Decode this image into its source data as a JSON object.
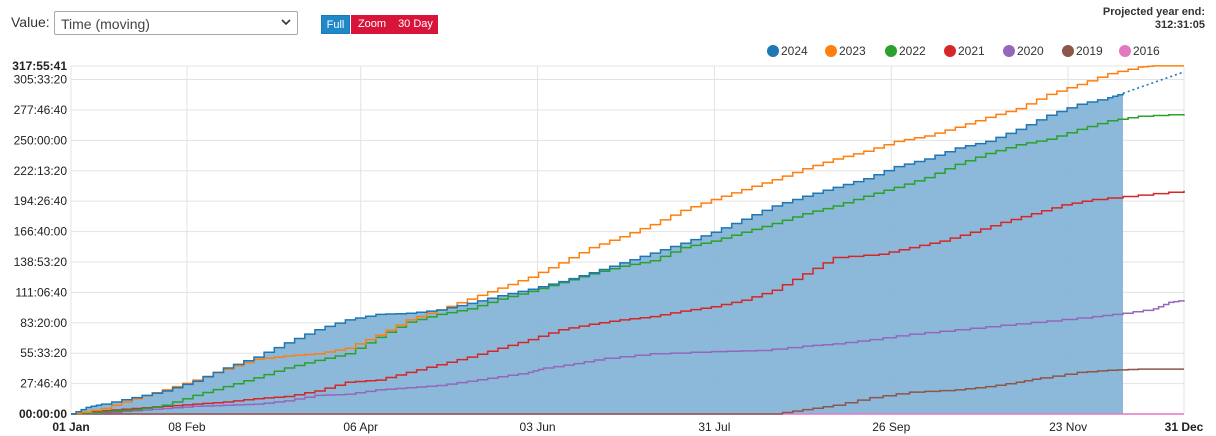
{
  "controls": {
    "value_label": "Value:",
    "value_select": "Time (moving)",
    "buttons": {
      "full": "Full",
      "zoom": "Zoom",
      "day30": "30 Day"
    },
    "projected_label": "Projected year end:",
    "projected_value": "312:31:05"
  },
  "legend": [
    {
      "label": "2024",
      "color": "#1f77b4"
    },
    {
      "label": "2023",
      "color": "#ff7f0e"
    },
    {
      "label": "2022",
      "color": "#2ca02c"
    },
    {
      "label": "2021",
      "color": "#d62728"
    },
    {
      "label": "2020",
      "color": "#9467bd"
    },
    {
      "label": "2019",
      "color": "#8c564b"
    },
    {
      "label": "2016",
      "color": "#e377c2"
    }
  ],
  "chart_data": {
    "type": "area",
    "xlabel": "",
    "ylabel": "",
    "x_ticks": [
      "01 Jan",
      "08 Feb",
      "06 Apr",
      "03 Jun",
      "31 Jul",
      "26 Sep",
      "23 Nov",
      "31 Dec"
    ],
    "x_tick_days": [
      0,
      38,
      95,
      153,
      211,
      269,
      327,
      365
    ],
    "y_ticks": [
      "00:00:00",
      "27:46:40",
      "55:33:20",
      "83:20:00",
      "111:06:40",
      "138:53:20",
      "166:40:00",
      "194:26:40",
      "222:13:20",
      "250:00:00",
      "277:46:40",
      "305:33:20"
    ],
    "y_tick_hours": [
      0,
      27.778,
      55.556,
      83.333,
      111.111,
      138.889,
      166.667,
      194.444,
      222.222,
      250,
      277.778,
      305.556
    ],
    "y_max_label": "317:55:41",
    "ylim_hours": [
      0,
      317.928
    ],
    "xlim_days": [
      0,
      365
    ],
    "grid": true,
    "series": [
      {
        "name": "2016",
        "color": "#e377c2",
        "fill": false,
        "points": [
          [
            0,
            0
          ],
          [
            365,
            0
          ]
        ]
      },
      {
        "name": "2019",
        "color": "#8c564b",
        "fill": false,
        "points": [
          [
            0,
            0
          ],
          [
            230,
            0
          ],
          [
            240,
            4
          ],
          [
            250,
            8
          ],
          [
            262,
            15
          ],
          [
            275,
            20
          ],
          [
            290,
            22
          ],
          [
            300,
            25
          ],
          [
            310,
            29
          ],
          [
            318,
            33
          ],
          [
            330,
            38
          ],
          [
            340,
            40
          ],
          [
            350,
            41
          ],
          [
            365,
            41
          ]
        ]
      },
      {
        "name": "2020",
        "color": "#9467bd",
        "fill": false,
        "points": [
          [
            0,
            0
          ],
          [
            10,
            1
          ],
          [
            20,
            3
          ],
          [
            30,
            5
          ],
          [
            40,
            7
          ],
          [
            50,
            8
          ],
          [
            60,
            9
          ],
          [
            70,
            12
          ],
          [
            80,
            17
          ],
          [
            90,
            18
          ],
          [
            100,
            22
          ],
          [
            110,
            24
          ],
          [
            120,
            26
          ],
          [
            130,
            30
          ],
          [
            140,
            34
          ],
          [
            150,
            38
          ],
          [
            155,
            42
          ],
          [
            165,
            46
          ],
          [
            175,
            51
          ],
          [
            190,
            55
          ],
          [
            210,
            57
          ],
          [
            225,
            58
          ],
          [
            240,
            62
          ],
          [
            250,
            64
          ],
          [
            262,
            68
          ],
          [
            275,
            73
          ],
          [
            290,
            77
          ],
          [
            305,
            81
          ],
          [
            320,
            85
          ],
          [
            335,
            89
          ],
          [
            345,
            92
          ],
          [
            355,
            96
          ],
          [
            360,
            102
          ],
          [
            365,
            104
          ]
        ]
      },
      {
        "name": "2021",
        "color": "#d62728",
        "fill": false,
        "points": [
          [
            0,
            0
          ],
          [
            10,
            3
          ],
          [
            20,
            5
          ],
          [
            30,
            7
          ],
          [
            40,
            9
          ],
          [
            50,
            11
          ],
          [
            60,
            14
          ],
          [
            70,
            16
          ],
          [
            80,
            21
          ],
          [
            90,
            29
          ],
          [
            100,
            31
          ],
          [
            110,
            38
          ],
          [
            120,
            45
          ],
          [
            130,
            52
          ],
          [
            140,
            60
          ],
          [
            150,
            68
          ],
          [
            160,
            77
          ],
          [
            170,
            82
          ],
          [
            180,
            86
          ],
          [
            190,
            89
          ],
          [
            200,
            94
          ],
          [
            210,
            98
          ],
          [
            220,
            104
          ],
          [
            230,
            113
          ],
          [
            240,
            128
          ],
          [
            250,
            143
          ],
          [
            265,
            146
          ],
          [
            275,
            152
          ],
          [
            285,
            158
          ],
          [
            295,
            166
          ],
          [
            305,
            175
          ],
          [
            315,
            183
          ],
          [
            325,
            191
          ],
          [
            335,
            196
          ],
          [
            350,
            200
          ],
          [
            365,
            204
          ]
        ]
      },
      {
        "name": "2022",
        "color": "#2ca02c",
        "fill": false,
        "points": [
          [
            0,
            0
          ],
          [
            10,
            2
          ],
          [
            20,
            4
          ],
          [
            30,
            8
          ],
          [
            40,
            17
          ],
          [
            50,
            25
          ],
          [
            60,
            33
          ],
          [
            70,
            42
          ],
          [
            80,
            49
          ],
          [
            90,
            55
          ],
          [
            100,
            70
          ],
          [
            110,
            84
          ],
          [
            120,
            91
          ],
          [
            130,
            96
          ],
          [
            140,
            105
          ],
          [
            150,
            112
          ],
          [
            160,
            120
          ],
          [
            170,
            128
          ],
          [
            180,
            135
          ],
          [
            190,
            140
          ],
          [
            200,
            152
          ],
          [
            210,
            158
          ],
          [
            220,
            166
          ],
          [
            230,
            174
          ],
          [
            240,
            183
          ],
          [
            250,
            190
          ],
          [
            260,
            199
          ],
          [
            270,
            207
          ],
          [
            280,
            216
          ],
          [
            290,
            228
          ],
          [
            300,
            238
          ],
          [
            310,
            246
          ],
          [
            320,
            251
          ],
          [
            330,
            260
          ],
          [
            340,
            268
          ],
          [
            350,
            272
          ],
          [
            365,
            274
          ]
        ]
      },
      {
        "name": "2023",
        "color": "#ff7f0e",
        "fill": false,
        "points": [
          [
            0,
            0
          ],
          [
            10,
            5
          ],
          [
            20,
            14
          ],
          [
            30,
            22
          ],
          [
            40,
            31
          ],
          [
            50,
            41
          ],
          [
            60,
            50
          ],
          [
            70,
            53
          ],
          [
            80,
            55
          ],
          [
            90,
            60
          ],
          [
            100,
            72
          ],
          [
            110,
            86
          ],
          [
            120,
            95
          ],
          [
            130,
            105
          ],
          [
            140,
            115
          ],
          [
            150,
            125
          ],
          [
            160,
            138
          ],
          [
            170,
            152
          ],
          [
            180,
            162
          ],
          [
            190,
            173
          ],
          [
            200,
            186
          ],
          [
            210,
            196
          ],
          [
            220,
            205
          ],
          [
            230,
            214
          ],
          [
            240,
            224
          ],
          [
            250,
            233
          ],
          [
            260,
            240
          ],
          [
            270,
            249
          ],
          [
            280,
            254
          ],
          [
            290,
            262
          ],
          [
            300,
            271
          ],
          [
            310,
            279
          ],
          [
            320,
            292
          ],
          [
            330,
            301
          ],
          [
            340,
            311
          ],
          [
            350,
            317
          ],
          [
            355,
            318
          ],
          [
            365,
            318
          ]
        ]
      },
      {
        "name": "2024",
        "color": "#1f77b4",
        "fill": true,
        "points": [
          [
            0,
            0
          ],
          [
            5,
            6
          ],
          [
            10,
            9
          ],
          [
            20,
            15
          ],
          [
            30,
            21
          ],
          [
            40,
            30
          ],
          [
            50,
            42
          ],
          [
            60,
            52
          ],
          [
            70,
            65
          ],
          [
            80,
            77
          ],
          [
            90,
            86
          ],
          [
            100,
            91
          ],
          [
            110,
            92
          ],
          [
            120,
            95
          ],
          [
            130,
            101
          ],
          [
            140,
            108
          ],
          [
            150,
            114
          ],
          [
            160,
            121
          ],
          [
            170,
            129
          ],
          [
            180,
            138
          ],
          [
            190,
            147
          ],
          [
            200,
            156
          ],
          [
            210,
            166
          ],
          [
            220,
            178
          ],
          [
            230,
            190
          ],
          [
            240,
            199
          ],
          [
            250,
            207
          ],
          [
            260,
            215
          ],
          [
            270,
            226
          ],
          [
            280,
            233
          ],
          [
            290,
            243
          ],
          [
            300,
            249
          ],
          [
            310,
            260
          ],
          [
            320,
            273
          ],
          [
            330,
            283
          ],
          [
            340,
            289
          ],
          [
            345,
            293
          ],
          [
            345,
            293
          ]
        ],
        "projection": [
          [
            345,
            293
          ],
          [
            365,
            312.518
          ]
        ]
      }
    ]
  }
}
